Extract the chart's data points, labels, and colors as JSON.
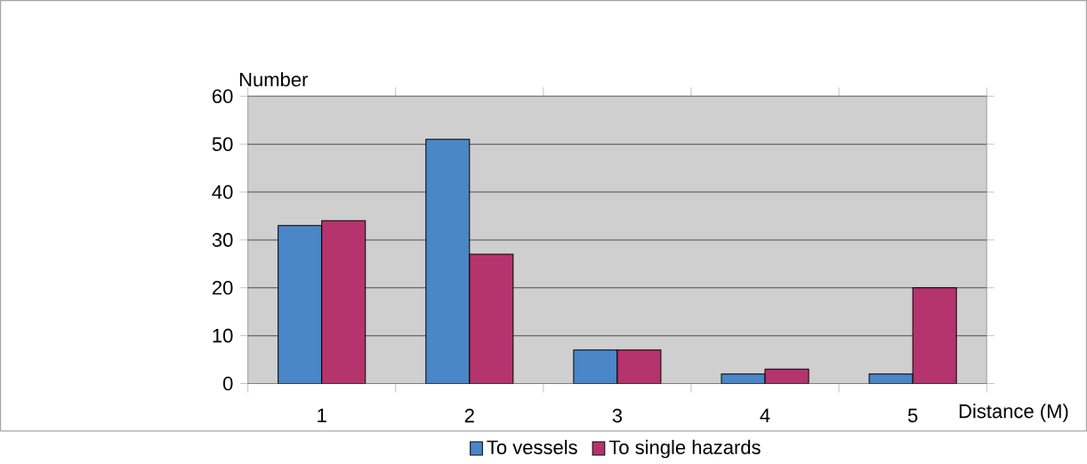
{
  "chart_data": {
    "type": "bar",
    "xlabel": "Distance (M)",
    "ylabel": "Number",
    "categories": [
      "1",
      "2",
      "3",
      "4",
      "5"
    ],
    "series": [
      {
        "name": "To vessels",
        "color": "#4a86c8",
        "values": [
          33,
          51,
          7,
          2,
          2
        ]
      },
      {
        "name": "To single hazards",
        "color": "#b5346e",
        "values": [
          34,
          27,
          7,
          3,
          20
        ]
      }
    ],
    "ylim": [
      0,
      60
    ],
    "yticks": [
      0,
      10,
      20,
      30,
      40,
      50,
      60
    ],
    "grid": "y",
    "legend": "bottom"
  }
}
